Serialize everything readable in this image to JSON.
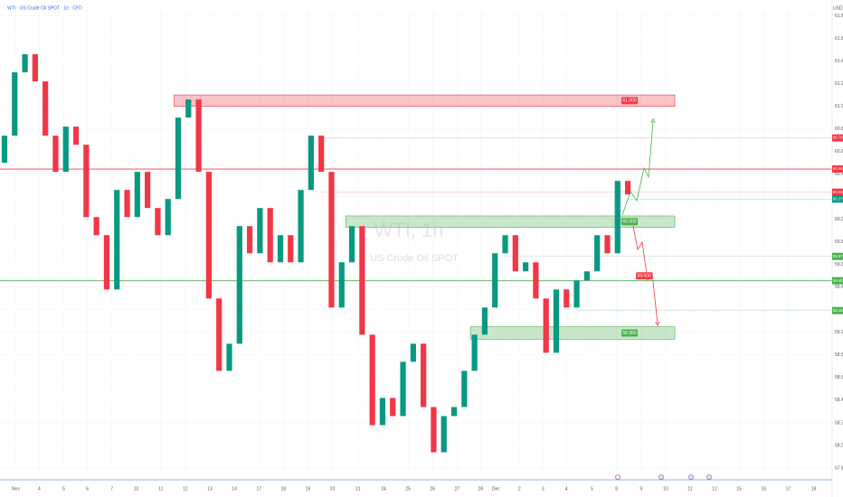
{
  "chart_data": {
    "type": "candlestick",
    "title": "WTI · US Crude Oil SPOT · 1h · CFD",
    "currency": "USD",
    "watermark": "WTI, 1h",
    "watermark_subtitle": "US Crude Oil SPOT",
    "up_color": "#089981",
    "down_color": "#f23645",
    "open": [
      60.5,
      60.74,
      61.3,
      61.46,
      61.22,
      60.74,
      60.42,
      60.82,
      60.66,
      60.02,
      59.86,
      59.38,
      60.26,
      60.02,
      60.42,
      60.1,
      59.86,
      60.18,
      60.9,
      61.06,
      60.42,
      59.3,
      58.66,
      58.9,
      59.94,
      59.7,
      60.1,
      59.62,
      59.86,
      59.62,
      60.26,
      60.74,
      60.42,
      59.22,
      59.62,
      59.94,
      58.98,
      58.18,
      58.42,
      58.26,
      58.74,
      58.9,
      58.34,
      57.94,
      58.26,
      58.34,
      58.66,
      58.98,
      59.22,
      59.7,
      59.86,
      59.54,
      59.62,
      59.3,
      58.82,
      59.38,
      59.22,
      59.46,
      59.54,
      59.86,
      59.7,
      60.34
    ],
    "close": [
      60.74,
      61.3,
      61.46,
      61.22,
      60.74,
      60.42,
      60.82,
      60.66,
      60.02,
      59.86,
      59.38,
      60.26,
      60.02,
      60.42,
      60.1,
      59.86,
      60.18,
      60.9,
      61.06,
      60.42,
      59.3,
      58.66,
      58.9,
      59.94,
      59.7,
      60.1,
      59.62,
      59.86,
      59.62,
      60.26,
      60.74,
      60.42,
      59.22,
      59.62,
      59.94,
      58.98,
      58.18,
      58.42,
      58.26,
      58.74,
      58.9,
      58.34,
      57.94,
      58.26,
      58.34,
      58.66,
      58.98,
      59.22,
      59.7,
      59.86,
      59.54,
      59.62,
      59.3,
      58.82,
      59.38,
      59.22,
      59.46,
      59.54,
      59.86,
      59.7,
      60.34,
      60.22
    ],
    "xlim": [
      -0.44,
      81
    ],
    "ylim": [
      57.72,
      61.86
    ],
    "xticks": [
      {
        "value": 1.1,
        "label": "Nov"
      },
      {
        "value": 3.4,
        "label": "4"
      },
      {
        "value": 5.8,
        "label": "5"
      },
      {
        "value": 8.1,
        "label": "6"
      },
      {
        "value": 10.5,
        "label": "7"
      },
      {
        "value": 12.9,
        "label": "10"
      },
      {
        "value": 15.3,
        "label": "11"
      },
      {
        "value": 17.7,
        "label": "12"
      },
      {
        "value": 20.1,
        "label": "13"
      },
      {
        "value": 22.5,
        "label": "14"
      },
      {
        "value": 24.9,
        "label": "17"
      },
      {
        "value": 27.3,
        "label": "18"
      },
      {
        "value": 29.7,
        "label": "19"
      },
      {
        "value": 32.1,
        "label": "20"
      },
      {
        "value": 34.6,
        "label": "21"
      },
      {
        "value": 37.1,
        "label": "24"
      },
      {
        "value": 39.5,
        "label": "25"
      },
      {
        "value": 41.9,
        "label": "26"
      },
      {
        "value": 44.3,
        "label": "27"
      },
      {
        "value": 46.6,
        "label": "28"
      },
      {
        "value": 48.1,
        "label": "Dec"
      },
      {
        "value": 50.4,
        "label": "2"
      },
      {
        "value": 52.7,
        "label": "3"
      },
      {
        "value": 55.0,
        "label": "4"
      },
      {
        "value": 57.5,
        "label": "5"
      },
      {
        "value": 59.9,
        "label": "8"
      },
      {
        "value": 62.3,
        "label": "9"
      },
      {
        "value": 64.7,
        "label": "10"
      },
      {
        "value": 67.1,
        "label": "11"
      },
      {
        "value": 69.5,
        "label": "12"
      },
      {
        "value": 71.9,
        "label": "15"
      },
      {
        "value": 74.3,
        "label": "16"
      },
      {
        "value": 76.7,
        "label": "17"
      },
      {
        "value": 79.2,
        "label": "18"
      }
    ],
    "yticks": [
      {
        "value": 57.8,
        "label": "57.800"
      },
      {
        "value": 58.0,
        "label": "58.000"
      },
      {
        "value": 58.2,
        "label": "58.200"
      },
      {
        "value": 58.4,
        "label": "58.400"
      },
      {
        "value": 58.6,
        "label": "58.600"
      },
      {
        "value": 58.8,
        "label": "58.800"
      },
      {
        "value": 59.0,
        "label": "59.000"
      },
      {
        "value": 59.2,
        "label": "59.200"
      },
      {
        "value": 59.4,
        "label": "59.400"
      },
      {
        "value": 59.6,
        "label": "59.600"
      },
      {
        "value": 59.8,
        "label": "59.800"
      },
      {
        "value": 60.0,
        "label": "60.000"
      },
      {
        "value": 60.2,
        "label": "60.200"
      },
      {
        "value": 60.4,
        "label": "60.400"
      },
      {
        "value": 60.6,
        "label": "60.600"
      },
      {
        "value": 60.8,
        "label": "60.800"
      },
      {
        "value": 61.0,
        "label": "61.000"
      },
      {
        "value": 61.2,
        "label": "61.200"
      },
      {
        "value": 61.4,
        "label": "61.400"
      },
      {
        "value": 61.6,
        "label": "61.600"
      },
      {
        "value": 61.8,
        "label": "61.800"
      }
    ],
    "zones": [
      {
        "from": 61.0,
        "to": 61.1,
        "x": [
          16.6,
          65.6
        ],
        "color": "#f23645",
        "label": "61.000"
      },
      {
        "from": 59.93,
        "to": 60.03,
        "x": [
          33.4,
          65.6
        ],
        "color": "#4caf50",
        "label": "60.000"
      },
      {
        "from": 58.94,
        "to": 59.05,
        "x": [
          45.6,
          65.6
        ],
        "color": "#4caf50",
        "label": "58.950"
      }
    ],
    "targets": [
      {
        "value": 59.5,
        "x": 61.8,
        "label": "59.500",
        "color": "#f23645"
      }
    ],
    "levels": [
      {
        "value": 60.72,
        "label": "60.720",
        "color": "#f23645",
        "style": "thin",
        "x0": 30.5
      },
      {
        "value": 60.445,
        "label": "60.445",
        "color": "#f23645",
        "style": "solid",
        "x0": -0.44
      },
      {
        "value": 60.24,
        "label": "60.240",
        "color": "#f23645",
        "style": "thin",
        "x0": 31
      },
      {
        "value": 60.179,
        "label": "60.179",
        "color": "#089981",
        "style": "thin",
        "x0": 61
      },
      {
        "value": 59.672,
        "label": "59.672",
        "color": "#4caf50",
        "style": "thin",
        "x0": 49
      },
      {
        "value": 59.457,
        "label": "59.457",
        "color": "#4caf50",
        "style": "solid",
        "x0": -0.44
      },
      {
        "value": 59.193,
        "label": "59.193",
        "color": "#4caf50",
        "style": "thin",
        "x0": 56
      }
    ]
  }
}
